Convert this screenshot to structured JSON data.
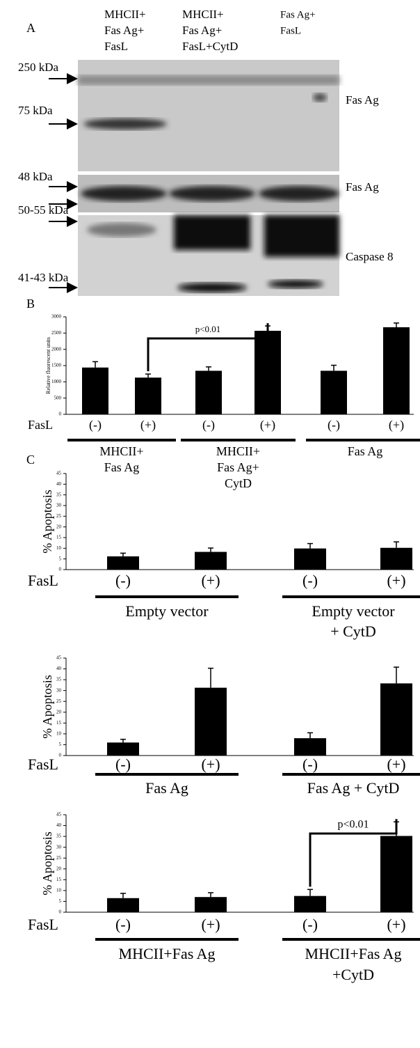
{
  "blot": {
    "panel": "A",
    "lanes": [
      [
        "MHCII+",
        "Fas Ag+",
        "FasL"
      ],
      [
        "MHCII+",
        "Fas Ag+",
        "FasL+CytD"
      ],
      [
        "Fas Ag+",
        "FasL"
      ]
    ],
    "markers": [
      "250 kDa",
      "75 kDa",
      "48 kDa",
      "50-55 kDa",
      "41-43 kDa"
    ],
    "targets": [
      "Fas Ag",
      "Fas Ag",
      "Caspase 8"
    ]
  },
  "chart_data": [
    {
      "type": "bar",
      "panel": "B",
      "ylabel": "Relative fluorescent units",
      "xlabel": "FasL",
      "categories": [
        "(-)",
        "(+)",
        "(-)",
        "(+)",
        "(-)",
        "(+)"
      ],
      "values": [
        1440,
        1130,
        1340,
        2570,
        1340,
        2680
      ],
      "errors": [
        180,
        110,
        120,
        150,
        170,
        130
      ],
      "groups": [
        [
          "MHCII+",
          "Fas Ag"
        ],
        [
          "MHCII+",
          "Fas Ag+",
          "CytD"
        ],
        [
          "Fas Ag"
        ]
      ],
      "significance": {
        "label": "p<0.01",
        "between": [
          1,
          3
        ]
      },
      "color": "#000000",
      "ylim": [
        0,
        3000
      ],
      "yticks": [
        0,
        500,
        1000,
        1500,
        2000,
        2500,
        3000
      ]
    },
    {
      "type": "bar",
      "panel": "C",
      "ylabel": "% Apoptosis",
      "xlabel": "FasL",
      "categories": [
        "(-)",
        "(+)",
        "(-)",
        "(+)"
      ],
      "values": [
        6.2,
        8.3,
        9.9,
        10.2
      ],
      "errors": [
        1.5,
        1.8,
        2.3,
        2.8
      ],
      "groups": [
        [
          "Empty vector"
        ],
        [
          "Empty vector",
          "+ CytD"
        ]
      ],
      "color": "#000000",
      "ylim": [
        0,
        45
      ],
      "yticks": [
        0,
        5,
        10,
        15,
        20,
        25,
        30,
        35,
        40,
        45
      ]
    },
    {
      "type": "bar",
      "ylabel": "% Apoptosis",
      "xlabel": "FasL",
      "categories": [
        "(-)",
        "(+)",
        "(-)",
        "(+)"
      ],
      "values": [
        6,
        31.3,
        8,
        33.3
      ],
      "errors": [
        1.5,
        9,
        2.5,
        7.5
      ],
      "groups": [
        [
          "Fas Ag"
        ],
        [
          "Fas Ag + CytD"
        ]
      ],
      "color": "#000000",
      "ylim": [
        0,
        45
      ],
      "yticks": [
        0,
        5,
        10,
        15,
        20,
        25,
        30,
        35,
        40,
        45
      ]
    },
    {
      "type": "bar",
      "ylabel": "% Apoptosis",
      "xlabel": "FasL",
      "categories": [
        "(-)",
        "(+)",
        "(-)",
        "(+)"
      ],
      "values": [
        6.5,
        7,
        7.5,
        35.2
      ],
      "errors": [
        2.2,
        2,
        3,
        6.5
      ],
      "groups": [
        [
          "MHCII+Fas Ag"
        ],
        [
          "MHCII+Fas Ag",
          "+CytD"
        ]
      ],
      "significance": {
        "label": "p<0.01",
        "between": [
          2,
          3
        ]
      },
      "color": "#000000",
      "ylim": [
        0,
        45
      ],
      "yticks": [
        0,
        5,
        10,
        15,
        20,
        25,
        30,
        35,
        40,
        45
      ]
    }
  ]
}
